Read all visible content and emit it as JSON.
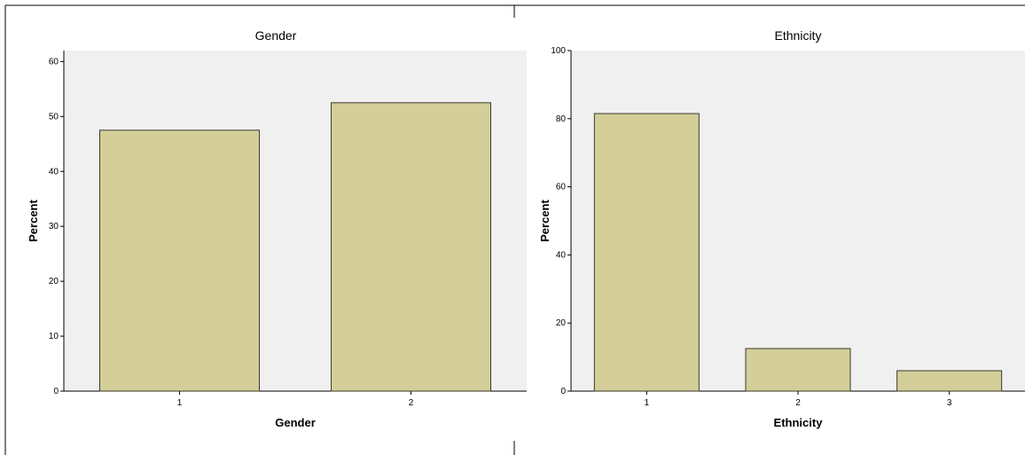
{
  "colors": {
    "bar_fill": "#d4cf99",
    "bar_stroke": "#3a3a2a",
    "plot_bg": "#f0f0f0",
    "axis": "#000000",
    "frame": "#000000",
    "text": "#000000"
  },
  "chart_data": [
    {
      "type": "bar",
      "title": "Gender",
      "xlabel": "Gender",
      "ylabel": "Percent",
      "categories": [
        "1",
        "2"
      ],
      "values": [
        47.5,
        52.5
      ],
      "ylim": [
        0,
        62
      ],
      "yticks": [
        0,
        10,
        20,
        30,
        40,
        50,
        60
      ],
      "grid": false,
      "legend": "none"
    },
    {
      "type": "bar",
      "title": "Ethnicity",
      "xlabel": "Ethnicity",
      "ylabel": "Percent",
      "categories": [
        "1",
        "2",
        "3"
      ],
      "values": [
        81.5,
        12.5,
        6
      ],
      "ylim": [
        0,
        100
      ],
      "yticks": [
        0,
        20,
        40,
        60,
        80,
        100
      ],
      "grid": false,
      "legend": "none"
    }
  ]
}
